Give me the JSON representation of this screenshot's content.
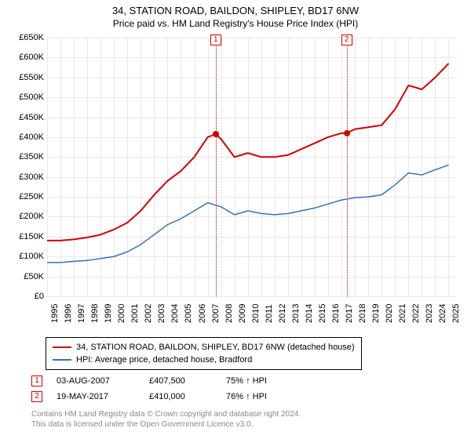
{
  "title_line1": "34, STATION ROAD, BAILDON, SHIPLEY, BD17 6NW",
  "title_line2": "Price paid vs. HM Land Registry's House Price Index (HPI)",
  "chart": {
    "type": "line",
    "background_color": "#ffffff",
    "grid_color": "#e8e8e8",
    "xlim": [
      1995,
      2025.5
    ],
    "ylim": [
      0,
      650000
    ],
    "ytick_step": 50000,
    "ytick_labels": [
      "£0",
      "£50K",
      "£100K",
      "£150K",
      "£200K",
      "£250K",
      "£300K",
      "£350K",
      "£400K",
      "£450K",
      "£500K",
      "£550K",
      "£600K",
      "£650K"
    ],
    "xtick_step": 1,
    "xtick_labels": [
      "1995",
      "1996",
      "1997",
      "1998",
      "1999",
      "2000",
      "2001",
      "2002",
      "2003",
      "2004",
      "2005",
      "2006",
      "2007",
      "2008",
      "2009",
      "2010",
      "2011",
      "2012",
      "2013",
      "2014",
      "2015",
      "2016",
      "2017",
      "2018",
      "2019",
      "2020",
      "2021",
      "2022",
      "2023",
      "2024",
      "2025"
    ],
    "label_fontsize": 11,
    "series": [
      {
        "name": "property",
        "color": "#d00000",
        "line_width": 2,
        "points": [
          [
            1995,
            140000
          ],
          [
            1996,
            140000
          ],
          [
            1997,
            143000
          ],
          [
            1998,
            148000
          ],
          [
            1999,
            155000
          ],
          [
            2000,
            168000
          ],
          [
            2001,
            185000
          ],
          [
            2002,
            215000
          ],
          [
            2003,
            255000
          ],
          [
            2004,
            290000
          ],
          [
            2005,
            315000
          ],
          [
            2006,
            350000
          ],
          [
            2007,
            400000
          ],
          [
            2007.6,
            407500
          ],
          [
            2008,
            395000
          ],
          [
            2009,
            350000
          ],
          [
            2010,
            360000
          ],
          [
            2011,
            350000
          ],
          [
            2012,
            350000
          ],
          [
            2013,
            355000
          ],
          [
            2014,
            370000
          ],
          [
            2015,
            385000
          ],
          [
            2016,
            400000
          ],
          [
            2017,
            410000
          ],
          [
            2017.38,
            410000
          ],
          [
            2018,
            420000
          ],
          [
            2019,
            425000
          ],
          [
            2020,
            430000
          ],
          [
            2021,
            470000
          ],
          [
            2022,
            530000
          ],
          [
            2023,
            520000
          ],
          [
            2024,
            550000
          ],
          [
            2025,
            585000
          ]
        ]
      },
      {
        "name": "hpi",
        "color": "#3a6fb7",
        "line_width": 1.5,
        "points": [
          [
            1995,
            85000
          ],
          [
            1996,
            85000
          ],
          [
            1997,
            88000
          ],
          [
            1998,
            90000
          ],
          [
            1999,
            95000
          ],
          [
            2000,
            100000
          ],
          [
            2001,
            112000
          ],
          [
            2002,
            130000
          ],
          [
            2003,
            155000
          ],
          [
            2004,
            180000
          ],
          [
            2005,
            195000
          ],
          [
            2006,
            215000
          ],
          [
            2007,
            235000
          ],
          [
            2008,
            225000
          ],
          [
            2009,
            205000
          ],
          [
            2010,
            215000
          ],
          [
            2011,
            208000
          ],
          [
            2012,
            205000
          ],
          [
            2013,
            208000
          ],
          [
            2014,
            215000
          ],
          [
            2015,
            222000
          ],
          [
            2016,
            232000
          ],
          [
            2017,
            242000
          ],
          [
            2018,
            248000
          ],
          [
            2019,
            250000
          ],
          [
            2020,
            255000
          ],
          [
            2021,
            280000
          ],
          [
            2022,
            310000
          ],
          [
            2023,
            305000
          ],
          [
            2024,
            318000
          ],
          [
            2025,
            330000
          ]
        ]
      }
    ],
    "sale_markers": [
      {
        "n": "1",
        "date": 2007.6,
        "price": 407500,
        "color": "#d00000"
      },
      {
        "n": "2",
        "date": 2017.38,
        "price": 410000,
        "color": "#d00000"
      }
    ],
    "reference_lines": [
      {
        "date": 2007.6,
        "color": "#d00000"
      },
      {
        "date": 2017.38,
        "color": "#d00000"
      }
    ]
  },
  "legend": {
    "items": [
      {
        "color": "#d00000",
        "line_width": 2,
        "label": "34, STATION ROAD, BAILDON, SHIPLEY, BD17 6NW (detached house)"
      },
      {
        "color": "#3a6fb7",
        "line_width": 1.5,
        "label": "HPI: Average price, detached house, Bradford"
      }
    ]
  },
  "sales": [
    {
      "n": "1",
      "date": "03-AUG-2007",
      "price": "£407,500",
      "pct": "75% ↑ HPI"
    },
    {
      "n": "2",
      "date": "19-MAY-2017",
      "price": "£410,000",
      "pct": "76% ↑ HPI"
    }
  ],
  "footer_line1": "Contains HM Land Registry data © Crown copyright and database right 2024.",
  "footer_line2": "This data is licensed under the Open Government Licence v3.0."
}
